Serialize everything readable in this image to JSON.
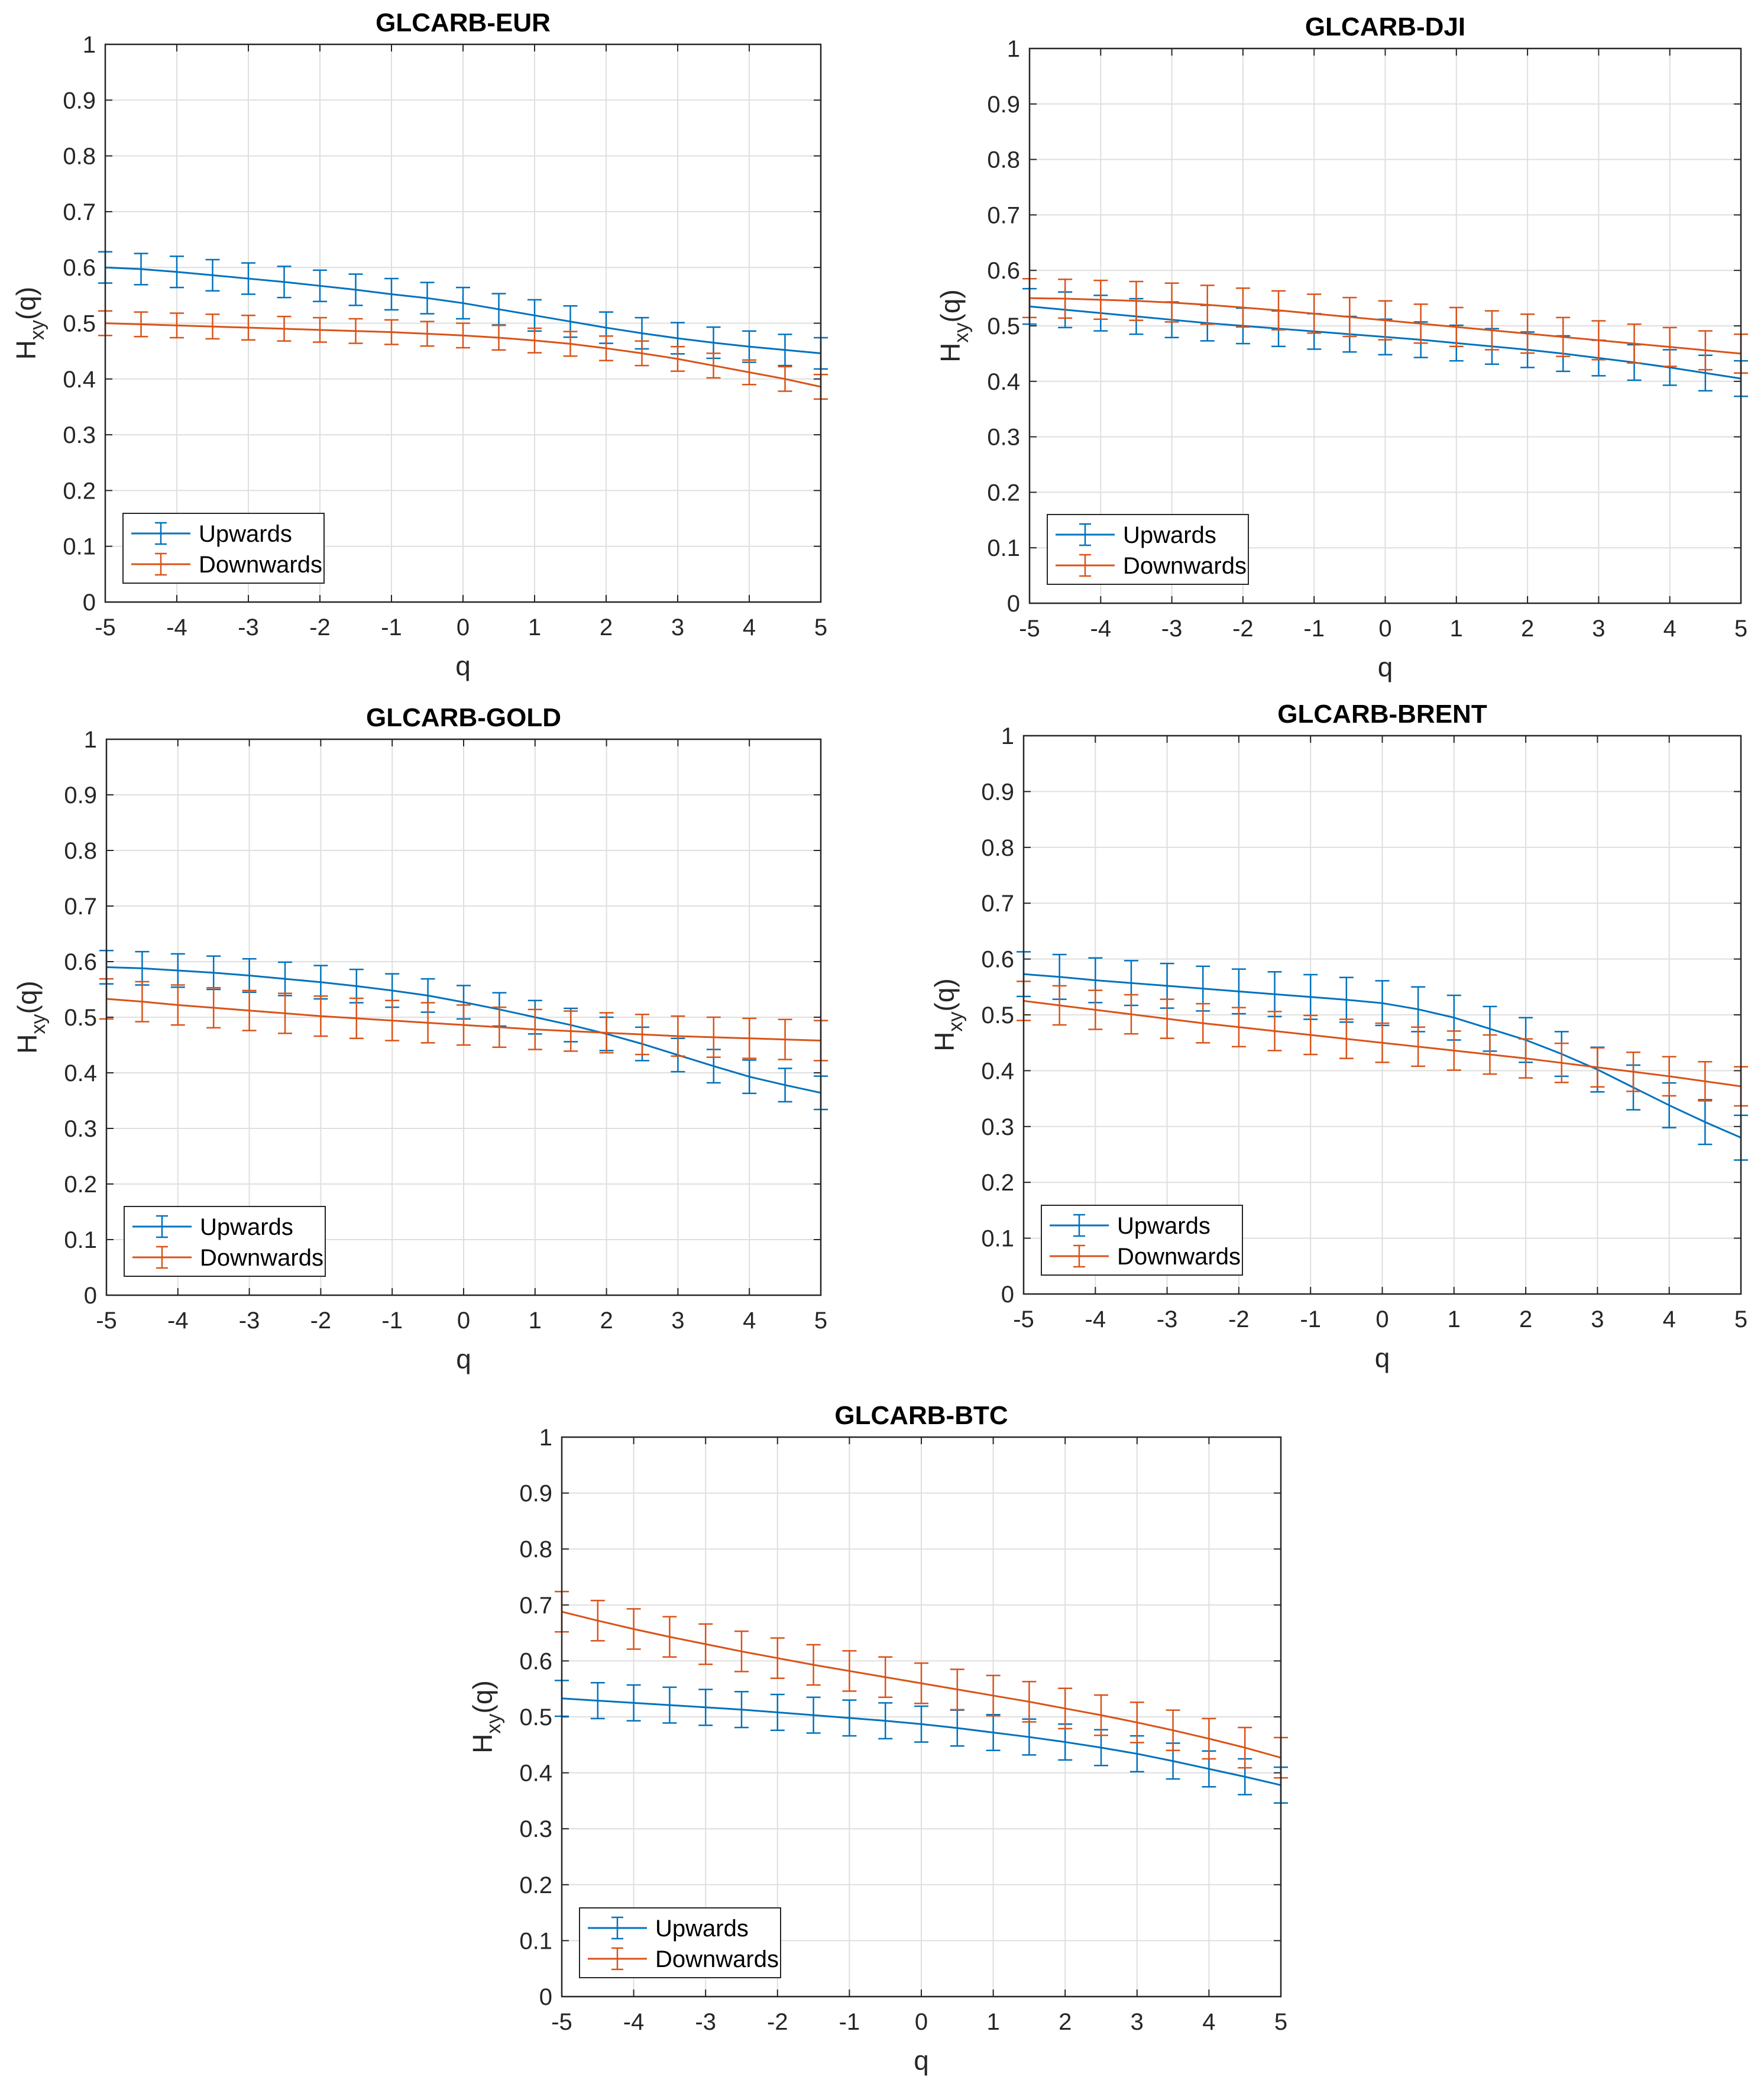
{
  "colors": {
    "up": "#0072BD",
    "down": "#D95319"
  },
  "chart_data": [
    {
      "type": "line",
      "title": "GLCARB-EUR",
      "xlabel": "q",
      "ylabel": "H_xy(q)",
      "ylabel_main": "H",
      "ylabel_sub": "xy",
      "ylabel_tail": "(q)",
      "xlim": [
        -5,
        5
      ],
      "ylim": [
        0,
        1
      ],
      "xticks": [
        "-5",
        "-4",
        "-3",
        "-2",
        "-1",
        "0",
        "1",
        "2",
        "3",
        "4",
        "5"
      ],
      "yticks": [
        "0",
        "0.1",
        "0.2",
        "0.3",
        "0.4",
        "0.5",
        "0.6",
        "0.7",
        "0.8",
        "0.9",
        "1"
      ],
      "legend": "bottom-left",
      "x": [
        -5,
        -4.5,
        -4,
        -3.5,
        -3,
        -2.5,
        -2,
        -1.5,
        -1,
        -0.5,
        0,
        0.5,
        1,
        1.5,
        2,
        2.5,
        3,
        3.5,
        4,
        4.5,
        5
      ],
      "series": [
        {
          "name": "Upwards",
          "values": [
            0.6,
            0.597,
            0.592,
            0.586,
            0.58,
            0.574,
            0.567,
            0.56,
            0.552,
            0.545,
            0.536,
            0.525,
            0.514,
            0.503,
            0.492,
            0.482,
            0.473,
            0.465,
            0.458,
            0.452,
            0.446
          ],
          "err": 0.028
        },
        {
          "name": "Downwards",
          "values": [
            0.5,
            0.498,
            0.496,
            0.494,
            0.492,
            0.49,
            0.488,
            0.486,
            0.484,
            0.481,
            0.478,
            0.474,
            0.469,
            0.463,
            0.455,
            0.446,
            0.436,
            0.424,
            0.412,
            0.4,
            0.386
          ],
          "err": 0.022
        }
      ]
    },
    {
      "type": "line",
      "title": "GLCARB-DJI",
      "xlabel": "q",
      "ylabel": "H_xy(q)",
      "ylabel_main": "H",
      "ylabel_sub": "xy",
      "ylabel_tail": "(q)",
      "xlim": [
        -5,
        5
      ],
      "ylim": [
        0,
        1
      ],
      "xticks": [
        "-5",
        "-4",
        "-3",
        "-2",
        "-1",
        "0",
        "1",
        "2",
        "3",
        "4",
        "5"
      ],
      "yticks": [
        "0",
        "0.1",
        "0.2",
        "0.3",
        "0.4",
        "0.5",
        "0.6",
        "0.7",
        "0.8",
        "0.9",
        "1"
      ],
      "legend": "bottom-left",
      "x": [
        -5,
        -4.5,
        -4,
        -3.5,
        -3,
        -2.5,
        -2,
        -1.5,
        -1,
        -0.5,
        0,
        0.5,
        1,
        1.5,
        2,
        2.5,
        3,
        3.5,
        4,
        4.5,
        5
      ],
      "series": [
        {
          "name": "Upwards",
          "values": [
            0.535,
            0.529,
            0.523,
            0.517,
            0.511,
            0.505,
            0.5,
            0.495,
            0.49,
            0.485,
            0.48,
            0.475,
            0.469,
            0.463,
            0.457,
            0.45,
            0.442,
            0.434,
            0.425,
            0.415,
            0.405
          ],
          "err": 0.032
        },
        {
          "name": "Downwards",
          "values": [
            0.55,
            0.549,
            0.547,
            0.545,
            0.542,
            0.538,
            0.533,
            0.528,
            0.522,
            0.516,
            0.51,
            0.504,
            0.498,
            0.492,
            0.486,
            0.48,
            0.474,
            0.468,
            0.462,
            0.456,
            0.45
          ],
          "err": 0.035
        }
      ]
    },
    {
      "type": "line",
      "title": "GLCARB-GOLD",
      "xlabel": "q",
      "ylabel": "H_xy(q)",
      "ylabel_main": "H",
      "ylabel_sub": "xy",
      "ylabel_tail": "(q)",
      "xlim": [
        -5,
        5
      ],
      "ylim": [
        0,
        1
      ],
      "xticks": [
        "-5",
        "-4",
        "-3",
        "-2",
        "-1",
        "0",
        "1",
        "2",
        "3",
        "4",
        "5"
      ],
      "yticks": [
        "0",
        "0.1",
        "0.2",
        "0.3",
        "0.4",
        "0.5",
        "0.6",
        "0.7",
        "0.8",
        "0.9",
        "1"
      ],
      "legend": "bottom-left",
      "x": [
        -5,
        -4.5,
        -4,
        -3.5,
        -3,
        -2.5,
        -2,
        -1.5,
        -1,
        -0.5,
        0,
        0.5,
        1,
        1.5,
        2,
        2.5,
        3,
        3.5,
        4,
        4.5,
        5
      ],
      "series": [
        {
          "name": "Upwards",
          "values": [
            0.59,
            0.588,
            0.584,
            0.58,
            0.575,
            0.569,
            0.563,
            0.556,
            0.548,
            0.539,
            0.527,
            0.514,
            0.5,
            0.486,
            0.47,
            0.452,
            0.432,
            0.412,
            0.393,
            0.378,
            0.364
          ],
          "err": 0.03
        },
        {
          "name": "Downwards",
          "values": [
            0.533,
            0.528,
            0.522,
            0.517,
            0.512,
            0.507,
            0.502,
            0.498,
            0.494,
            0.49,
            0.486,
            0.482,
            0.478,
            0.475,
            0.472,
            0.469,
            0.466,
            0.464,
            0.462,
            0.46,
            0.458
          ],
          "err": 0.036
        }
      ]
    },
    {
      "type": "line",
      "title": "GLCARB-BRENT",
      "xlabel": "q",
      "ylabel": "H_xy(q)",
      "ylabel_main": "H",
      "ylabel_sub": "xy",
      "ylabel_tail": "(q)",
      "xlim": [
        -5,
        5
      ],
      "ylim": [
        0,
        1
      ],
      "xticks": [
        "-5",
        "-4",
        "-3",
        "-2",
        "-1",
        "0",
        "1",
        "2",
        "3",
        "4",
        "5"
      ],
      "yticks": [
        "0",
        "0.1",
        "0.2",
        "0.3",
        "0.4",
        "0.5",
        "0.6",
        "0.7",
        "0.8",
        "0.9",
        "1"
      ],
      "legend": "bottom-left",
      "x": [
        -5,
        -4.5,
        -4,
        -3.5,
        -3,
        -2.5,
        -2,
        -1.5,
        -1,
        -0.5,
        0,
        0.5,
        1,
        1.5,
        2,
        2.5,
        3,
        3.5,
        4,
        4.5,
        5
      ],
      "series": [
        {
          "name": "Upwards",
          "values": [
            0.573,
            0.568,
            0.562,
            0.557,
            0.552,
            0.547,
            0.542,
            0.537,
            0.532,
            0.527,
            0.521,
            0.51,
            0.495,
            0.475,
            0.455,
            0.43,
            0.402,
            0.37,
            0.338,
            0.308,
            0.28
          ],
          "err": 0.04
        },
        {
          "name": "Downwards",
          "values": [
            0.525,
            0.517,
            0.509,
            0.501,
            0.493,
            0.485,
            0.478,
            0.471,
            0.464,
            0.457,
            0.45,
            0.443,
            0.436,
            0.429,
            0.422,
            0.414,
            0.406,
            0.398,
            0.39,
            0.381,
            0.372
          ],
          "err": 0.035
        }
      ]
    },
    {
      "type": "line",
      "title": "GLCARB-BTC",
      "xlabel": "q",
      "ylabel": "H_xy(q)",
      "ylabel_main": "H",
      "ylabel_sub": "xy",
      "ylabel_tail": "(q)",
      "xlim": [
        -5,
        5
      ],
      "ylim": [
        0,
        1
      ],
      "xticks": [
        "-5",
        "-4",
        "-3",
        "-2",
        "-1",
        "0",
        "1",
        "2",
        "3",
        "4",
        "5"
      ],
      "yticks": [
        "0",
        "0.1",
        "0.2",
        "0.3",
        "0.4",
        "0.5",
        "0.6",
        "0.7",
        "0.8",
        "0.9",
        "1"
      ],
      "legend": "bottom-left",
      "x": [
        -5,
        -4.5,
        -4,
        -3.5,
        -3,
        -2.5,
        -2,
        -1.5,
        -1,
        -0.5,
        0,
        0.5,
        1,
        1.5,
        2,
        2.5,
        3,
        3.5,
        4,
        4.5,
        5
      ],
      "series": [
        {
          "name": "Upwards",
          "values": [
            0.533,
            0.529,
            0.525,
            0.521,
            0.517,
            0.513,
            0.508,
            0.503,
            0.498,
            0.493,
            0.487,
            0.48,
            0.472,
            0.464,
            0.455,
            0.445,
            0.434,
            0.421,
            0.407,
            0.393,
            0.378
          ],
          "err": 0.032
        },
        {
          "name": "Downwards",
          "values": [
            0.688,
            0.672,
            0.657,
            0.643,
            0.63,
            0.617,
            0.605,
            0.593,
            0.582,
            0.571,
            0.56,
            0.549,
            0.538,
            0.527,
            0.515,
            0.503,
            0.49,
            0.476,
            0.461,
            0.445,
            0.427
          ],
          "err": 0.036
        }
      ]
    }
  ]
}
